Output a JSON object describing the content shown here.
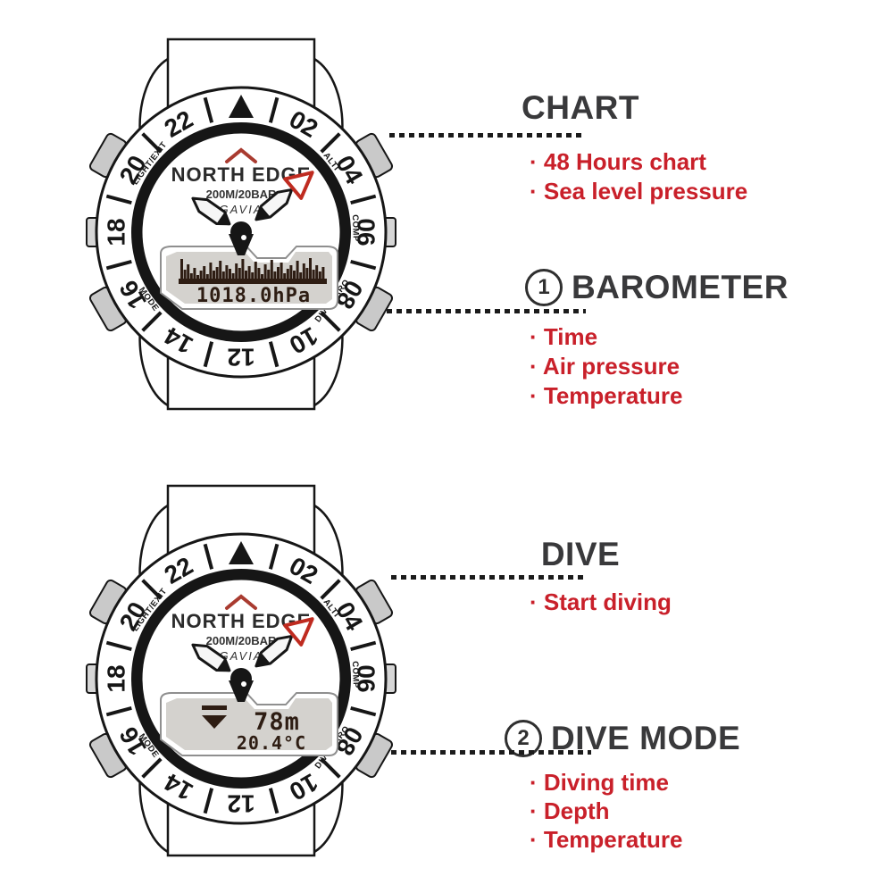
{
  "colors": {
    "red_text": "#c9202a",
    "title_gray": "#39393b",
    "outline_black": "#161616",
    "button_gray": "#c9c9c9",
    "lcd_gray": "#d4d2ce",
    "lcd_dark": "#2e1d13",
    "hand_red": "#bf2b20",
    "chevron_red": "#a93b30"
  },
  "watches": {
    "shared": {
      "brand": "NORTH EDGE",
      "spec": "200M/20BAR",
      "model": "GAVIA",
      "bezel_numbers": [
        "02",
        "04",
        "06",
        "08",
        "10",
        "12",
        "14",
        "16",
        "18",
        "20",
        "22"
      ],
      "bezel_labels": [
        {
          "text": "ALTI",
          "angle": 52
        },
        {
          "text": "COMP",
          "angle": 88
        },
        {
          "text": "DIVE/BARO",
          "angle": 127
        },
        {
          "text": "MODE",
          "angle": 234
        },
        {
          "text": "LIGHT/EXIT",
          "angle": 307
        }
      ],
      "hands": {
        "minute_angle": 50,
        "hour_angle": 305
      },
      "icons": [
        "bezel-triangle-marker",
        "red-chevron-logo"
      ]
    },
    "top": {
      "lcd": {
        "mode": "barometer",
        "reading": "1018.0hPa",
        "histogram": [
          22,
          10,
          16,
          6,
          12,
          4,
          9,
          14,
          5,
          18,
          9,
          13,
          20,
          8,
          15,
          11,
          6,
          17,
          12,
          22,
          9,
          14,
          7,
          19,
          12,
          5,
          16,
          10,
          21,
          8,
          13,
          18,
          6,
          11,
          15,
          9,
          20,
          7,
          17,
          12,
          23,
          10,
          15,
          8,
          13
        ]
      }
    },
    "bottom": {
      "lcd": {
        "mode": "dive",
        "depth": "78m",
        "temperature": "20.4°C",
        "icon": "descend-arrow-icon"
      }
    }
  },
  "annotations": {
    "chart": {
      "title": "CHART",
      "items": [
        "· 48 Hours chart",
        "· Sea level pressure"
      ]
    },
    "barometer": {
      "number": "1",
      "title": "BAROMETER",
      "items": [
        "· Time",
        "· Air pressure",
        "· Temperature"
      ]
    },
    "dive": {
      "title": "DIVE",
      "items": [
        "· Start diving"
      ]
    },
    "dive_mode": {
      "number": "2",
      "title": "DIVE MODE",
      "items": [
        "· Diving time",
        "· Depth",
        "· Temperature"
      ]
    }
  }
}
